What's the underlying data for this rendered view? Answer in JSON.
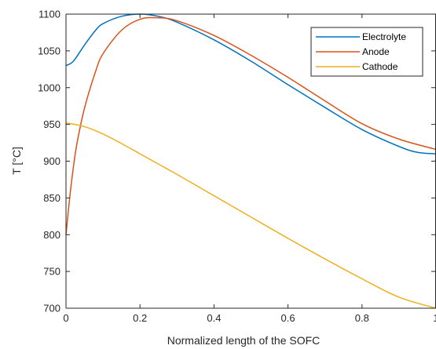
{
  "chart_data": {
    "type": "line",
    "xlabel": "Normalized length of the SOFC",
    "ylabel": "T [°C]",
    "xlim": [
      0,
      1
    ],
    "ylim": [
      700,
      1100
    ],
    "xticks": [
      0,
      0.2,
      0.4,
      0.6,
      0.8,
      1
    ],
    "xtick_labels": [
      "0",
      "0.2",
      "0.4",
      "0.6",
      "0.8",
      "1"
    ],
    "yticks": [
      700,
      750,
      800,
      850,
      900,
      950,
      1000,
      1050,
      1100
    ],
    "ytick_labels": [
      "700",
      "750",
      "800",
      "850",
      "900",
      "950",
      "1000",
      "1050",
      "1100"
    ],
    "grid": false,
    "legend_position": "top-right",
    "series": [
      {
        "name": "Electrolyte",
        "color": "#0072BD",
        "x": [
          0,
          0.02,
          0.05,
          0.08,
          0.1,
          0.15,
          0.2,
          0.25,
          0.3,
          0.4,
          0.5,
          0.6,
          0.7,
          0.8,
          0.9,
          0.95,
          1.0
        ],
        "y": [
          1030,
          1036,
          1058,
          1078,
          1087,
          1097,
          1100,
          1097,
          1089,
          1065,
          1036,
          1004,
          973,
          943,
          920,
          912,
          910
        ]
      },
      {
        "name": "Anode",
        "color": "#D95319",
        "x": [
          0,
          0.01,
          0.02,
          0.03,
          0.05,
          0.08,
          0.1,
          0.15,
          0.2,
          0.25,
          0.3,
          0.4,
          0.5,
          0.6,
          0.7,
          0.8,
          0.9,
          1.0
        ],
        "y": [
          800,
          850,
          892,
          925,
          972,
          1022,
          1046,
          1078,
          1093,
          1095,
          1091,
          1071,
          1044,
          1014,
          982,
          951,
          930,
          916
        ]
      },
      {
        "name": "Cathode",
        "color": "#EDB120",
        "x": [
          0,
          0.05,
          0.1,
          0.15,
          0.2,
          0.25,
          0.3,
          0.4,
          0.5,
          0.6,
          0.7,
          0.8,
          0.9,
          1.0
        ],
        "y": [
          952,
          947,
          937,
          924,
          910,
          896,
          882,
          853,
          824,
          795,
          767,
          740,
          715,
          700
        ]
      }
    ]
  }
}
